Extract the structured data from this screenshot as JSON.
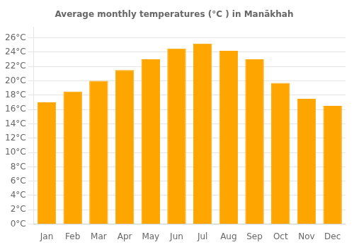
{
  "chart_data": {
    "type": "bar",
    "title": "Average monthly temperatures (°C ) in Manākhah",
    "categories": [
      "Jan",
      "Feb",
      "Mar",
      "Apr",
      "May",
      "Jun",
      "Jul",
      "Aug",
      "Sep",
      "Oct",
      "Nov",
      "Dec"
    ],
    "values": [
      17.0,
      18.5,
      20.0,
      21.5,
      23.0,
      24.5,
      25.2,
      24.2,
      23.0,
      19.7,
      17.5,
      16.5
    ],
    "color": "#FFA500",
    "ylim": [
      0,
      27.5
    ],
    "yticks": [
      {
        "value": 0,
        "label": "0°C"
      },
      {
        "value": 2,
        "label": "2°C"
      },
      {
        "value": 4,
        "label": "4°C"
      },
      {
        "value": 6,
        "label": "6°C"
      },
      {
        "value": 8,
        "label": "8°C"
      },
      {
        "value": 10,
        "label": "10°C"
      },
      {
        "value": 12,
        "label": "12°C"
      },
      {
        "value": 14,
        "label": "14°C"
      },
      {
        "value": 16,
        "label": "16°C"
      },
      {
        "value": 18,
        "label": "18°C"
      },
      {
        "value": 20,
        "label": "20°C"
      },
      {
        "value": 22,
        "label": "22°C"
      },
      {
        "value": 24,
        "label": "24°C"
      },
      {
        "value": 26,
        "label": "26°C"
      }
    ],
    "grid": true
  }
}
